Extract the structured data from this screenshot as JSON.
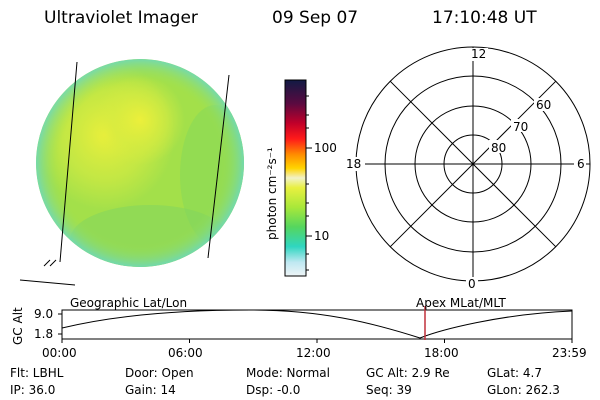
{
  "header": {
    "title": "Ultraviolet Imager",
    "date": "09 Sep 07",
    "time": "17:10:48 UT"
  },
  "colorbar": {
    "unit_label": "photon cm⁻²s⁻¹",
    "ticks": [
      "100",
      "10"
    ],
    "colors": [
      "#111a44",
      "#b30033",
      "#ff1010",
      "#ff8c00",
      "#ffd000",
      "#eef24a",
      "#a8e83a",
      "#5bd663",
      "#38d9c8",
      "#bfe8f2",
      "#e8f1f4"
    ]
  },
  "polar_plot": {
    "mlt_labels": {
      "top": "12",
      "left": "18",
      "right": "6",
      "bottom": "0"
    },
    "lat_labels": [
      "60",
      "70",
      "80"
    ]
  },
  "timeline": {
    "y_label": "GC Alt",
    "y_ticks": [
      "9.0",
      "1.8"
    ],
    "left_title": "Geographic Lat/Lon",
    "right_title": "Apex MLat/MLT",
    "x_ticks": [
      "00:00",
      "06:00",
      "12:00",
      "18:00",
      "23:59"
    ],
    "marker_time": "17:10",
    "marker_color": "#c0303a"
  },
  "status": {
    "filter": "Flt: LBHL",
    "door": "Door: Open",
    "mode": "Mode: Normal",
    "gc_alt": "GC Alt: 2.9 Re",
    "glat": "GLat:   4.7",
    "ip": "IP: 36.0",
    "gain": "Gain: 14",
    "dsp": "Dsp:   -0.0",
    "seq": "Seq: 39",
    "glon": "GLon: 262.3"
  },
  "colors": {
    "earth_base": "#9fe04a",
    "earth_bright": "#e4ee3c",
    "earth_edge": "#7fd8c8"
  }
}
